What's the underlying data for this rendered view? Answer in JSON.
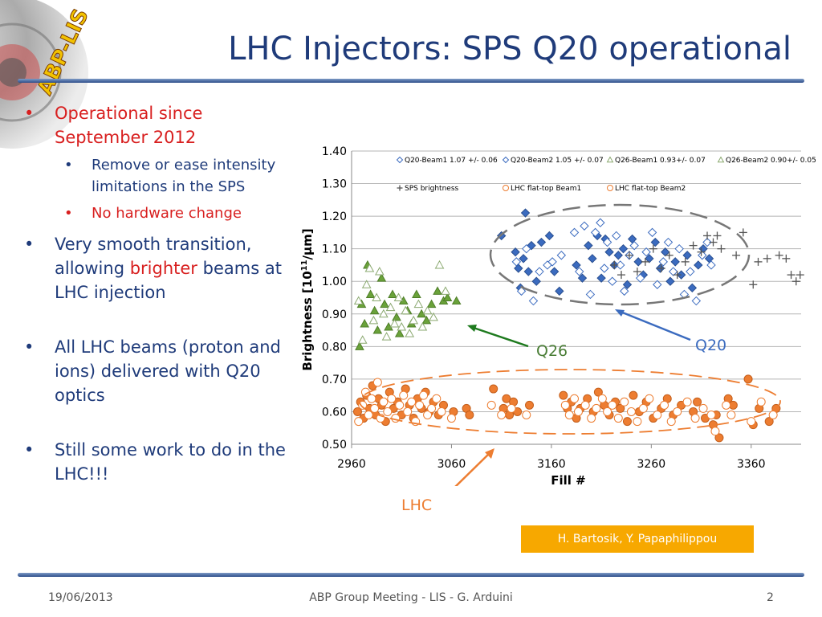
{
  "logo_text": "ABP-LIS",
  "title": "LHC Injectors: SPS Q20 operational",
  "bullets": {
    "b1": "Operational since September 2012",
    "b1_sub1": "Remove or ease intensity limitations in the SPS",
    "b1_sub2": "No hardware change",
    "b2_pre": "Very smooth transition, allowing ",
    "b2_hl": "brighter",
    "b2_post": " beams at LHC injection",
    "b3": "All LHC beams (proton and ions) delivered with Q20 optics",
    "b4": "Still some work to do in the LHC!!!"
  },
  "credit": "H. Bartosik, Y. Papaphilippou",
  "footer": {
    "date": "19/06/2013",
    "meeting": "ABP Group Meeting - LIS - G. Arduini",
    "page": "2"
  },
  "colors": {
    "title": "#1f3b7a",
    "red": "#d81f1f",
    "q20": "#3b6bbf",
    "q26": "#6aa23a",
    "lhc": "#ed7d31",
    "sps": "#555555",
    "credit_bg": "#f7a800"
  },
  "chart_data": {
    "type": "scatter",
    "xlabel": "Fill #",
    "ylabel": "Brightness [10^11/μm]",
    "ylabel_parts": {
      "pre": "Brightness [10",
      "sup": "11",
      "post": "/μm]"
    },
    "x_ticks": [
      "2960",
      "3060",
      "3160",
      "3260",
      "3360"
    ],
    "y_ticks": [
      "0.50",
      "0.60",
      "0.70",
      "0.80",
      "0.90",
      "1.00",
      "1.10",
      "1.20",
      "1.30",
      "1.40"
    ],
    "xlim": [
      2960,
      3410
    ],
    "ylim": [
      0.5,
      1.4
    ],
    "grid": "horizontal",
    "legend": [
      {
        "label": "Q20-Beam1 1.07 +/- 0.06",
        "marker": "diamond-open",
        "color": "#3b6bbf"
      },
      {
        "label": "Q20-Beam2 1.05 +/- 0.07",
        "marker": "diamond-open",
        "color": "#3b6bbf"
      },
      {
        "label": "Q26-Beam1 0.93+/- 0.07",
        "marker": "triangle-open",
        "color": "#6aa23a"
      },
      {
        "label": "Q26-Beam2 0.90+/- 0.05",
        "marker": "triangle-open",
        "color": "#6aa23a"
      },
      {
        "label": "SPS brightness",
        "marker": "plus",
        "color": "#555555"
      },
      {
        "label": "LHC flat-top Beam1",
        "marker": "circle-open",
        "color": "#ed7d31"
      },
      {
        "label": "LHC flat-top Beam2",
        "marker": "circle-open",
        "color": "#ed7d31"
      }
    ],
    "annotations": [
      "Q20",
      "Q26",
      "LHC"
    ],
    "series": [
      {
        "name": "Q26-Beam1 0.93+/- 0.07",
        "marker": "triangle-filled",
        "color": "#6aa23a",
        "points": [
          [
            2968,
            0.8
          ],
          [
            2970,
            0.93
          ],
          [
            2973,
            0.87
          ],
          [
            2976,
            1.05
          ],
          [
            2979,
            0.96
          ],
          [
            2983,
            0.91
          ],
          [
            2986,
            0.85
          ],
          [
            2990,
            1.01
          ],
          [
            2993,
            0.93
          ],
          [
            2997,
            0.86
          ],
          [
            3001,
            0.96
          ],
          [
            3005,
            0.89
          ],
          [
            3008,
            0.84
          ],
          [
            3012,
            0.94
          ],
          [
            3016,
            0.91
          ],
          [
            3020,
            0.87
          ],
          [
            3025,
            0.96
          ],
          [
            3030,
            0.9
          ],
          [
            3035,
            0.88
          ],
          [
            3040,
            0.93
          ],
          [
            3046,
            0.97
          ],
          [
            3052,
            0.94
          ],
          [
            3056,
            0.95
          ],
          [
            3065,
            0.94
          ]
        ]
      },
      {
        "name": "Q26-Beam2 0.90+/- 0.05",
        "marker": "triangle-open",
        "color": "#6aa23a",
        "points": [
          [
            2967,
            0.94
          ],
          [
            2971,
            0.82
          ],
          [
            2975,
            0.99
          ],
          [
            2978,
            1.04
          ],
          [
            2982,
            0.88
          ],
          [
            2985,
            0.95
          ],
          [
            2988,
            1.03
          ],
          [
            2992,
            0.9
          ],
          [
            2995,
            0.83
          ],
          [
            2999,
            0.92
          ],
          [
            3003,
            0.87
          ],
          [
            3007,
            0.95
          ],
          [
            3010,
            0.86
          ],
          [
            3014,
            0.91
          ],
          [
            3018,
            0.84
          ],
          [
            3022,
            0.88
          ],
          [
            3027,
            0.93
          ],
          [
            3031,
            0.86
          ],
          [
            3036,
            0.91
          ],
          [
            3042,
            0.89
          ],
          [
            3048,
            1.05
          ],
          [
            3054,
            0.97
          ]
        ]
      },
      {
        "name": "Q20-Beam1 1.07 +/- 0.06",
        "marker": "diamond-filled",
        "color": "#3b6bbf",
        "points": [
          [
            3110,
            1.14
          ],
          [
            3124,
            1.09
          ],
          [
            3127,
            1.04
          ],
          [
            3129,
            0.98
          ],
          [
            3132,
            1.07
          ],
          [
            3134,
            1.21
          ],
          [
            3137,
            1.03
          ],
          [
            3140,
            1.11
          ],
          [
            3145,
            1.0
          ],
          [
            3150,
            1.12
          ],
          [
            3158,
            1.14
          ],
          [
            3163,
            1.03
          ],
          [
            3168,
            0.97
          ],
          [
            3185,
            1.05
          ],
          [
            3191,
            1.01
          ],
          [
            3197,
            1.11
          ],
          [
            3201,
            1.07
          ],
          [
            3206,
            1.14
          ],
          [
            3210,
            1.01
          ],
          [
            3214,
            1.13
          ],
          [
            3218,
            1.09
          ],
          [
            3223,
            1.05
          ],
          [
            3227,
            1.08
          ],
          [
            3232,
            1.1
          ],
          [
            3236,
            0.99
          ],
          [
            3241,
            1.13
          ],
          [
            3247,
            1.06
          ],
          [
            3252,
            1.02
          ],
          [
            3258,
            1.07
          ],
          [
            3264,
            1.12
          ],
          [
            3269,
            1.04
          ],
          [
            3274,
            1.09
          ],
          [
            3279,
            1.0
          ],
          [
            3284,
            1.06
          ],
          [
            3290,
            1.02
          ],
          [
            3296,
            1.08
          ],
          [
            3301,
            0.98
          ],
          [
            3307,
            1.05
          ],
          [
            3312,
            1.1
          ],
          [
            3318,
            1.07
          ]
        ]
      },
      {
        "name": "Q20-Beam2 1.05 +/- 0.07",
        "marker": "diamond-open",
        "color": "#3b6bbf",
        "points": [
          [
            3125,
            1.06
          ],
          [
            3130,
            0.97
          ],
          [
            3135,
            1.1
          ],
          [
            3142,
            0.94
          ],
          [
            3148,
            1.03
          ],
          [
            3156,
            1.05
          ],
          [
            3161,
            1.06
          ],
          [
            3170,
            1.08
          ],
          [
            3183,
            1.15
          ],
          [
            3188,
            1.03
          ],
          [
            3193,
            1.17
          ],
          [
            3199,
            0.96
          ],
          [
            3204,
            1.15
          ],
          [
            3209,
            1.18
          ],
          [
            3213,
            1.04
          ],
          [
            3216,
            1.12
          ],
          [
            3221,
            1.0
          ],
          [
            3225,
            1.14
          ],
          [
            3229,
            1.05
          ],
          [
            3233,
            0.97
          ],
          [
            3238,
            1.08
          ],
          [
            3243,
            1.11
          ],
          [
            3249,
            1.01
          ],
          [
            3255,
            1.09
          ],
          [
            3261,
            1.15
          ],
          [
            3266,
            0.99
          ],
          [
            3272,
            1.06
          ],
          [
            3277,
            1.12
          ],
          [
            3282,
            1.03
          ],
          [
            3288,
            1.1
          ],
          [
            3293,
            0.96
          ],
          [
            3299,
            1.03
          ],
          [
            3305,
            0.94
          ],
          [
            3311,
            1.08
          ],
          [
            3316,
            1.12
          ],
          [
            3320,
            1.05
          ]
        ]
      },
      {
        "name": "SPS brightness",
        "marker": "plus",
        "color": "#555555",
        "points": [
          [
            3223,
            1.05
          ],
          [
            3230,
            1.02
          ],
          [
            3238,
            1.08
          ],
          [
            3246,
            1.03
          ],
          [
            3254,
            1.06
          ],
          [
            3262,
            1.1
          ],
          [
            3270,
            1.04
          ],
          [
            3278,
            1.08
          ],
          [
            3286,
            1.02
          ],
          [
            3294,
            1.06
          ],
          [
            3302,
            1.11
          ],
          [
            3310,
            1.09
          ],
          [
            3316,
            1.14
          ],
          [
            3322,
            1.12
          ],
          [
            3326,
            1.14
          ],
          [
            3330,
            1.1
          ],
          [
            3345,
            1.08
          ],
          [
            3352,
            1.15
          ],
          [
            3362,
            0.99
          ],
          [
            3367,
            1.06
          ],
          [
            3376,
            1.07
          ],
          [
            3388,
            1.08
          ],
          [
            3395,
            1.07
          ],
          [
            3400,
            1.02
          ],
          [
            3405,
            1.0
          ],
          [
            3409,
            1.02
          ]
        ]
      },
      {
        "name": "LHC flat-top Beam1",
        "marker": "circle-filled",
        "color": "#ed7d31",
        "points": [
          [
            2966,
            0.6
          ],
          [
            2969,
            0.63
          ],
          [
            2972,
            0.58
          ],
          [
            2975,
            0.65
          ],
          [
            2978,
            0.61
          ],
          [
            2981,
            0.68
          ],
          [
            2984,
            0.59
          ],
          [
            2987,
            0.64
          ],
          [
            2990,
            0.62
          ],
          [
            2994,
            0.57
          ],
          [
            2998,
            0.66
          ],
          [
            3002,
            0.61
          ],
          [
            3006,
            0.63
          ],
          [
            3010,
            0.59
          ],
          [
            3014,
            0.67
          ],
          [
            3018,
            0.62
          ],
          [
            3022,
            0.58
          ],
          [
            3026,
            0.64
          ],
          [
            3030,
            0.61
          ],
          [
            3034,
            0.66
          ],
          [
            3038,
            0.6
          ],
          [
            3042,
            0.63
          ],
          [
            3047,
            0.59
          ],
          [
            3052,
            0.62
          ],
          [
            3062,
            0.6
          ],
          [
            3075,
            0.61
          ],
          [
            3078,
            0.59
          ],
          [
            3102,
            0.67
          ],
          [
            3112,
            0.61
          ],
          [
            3115,
            0.64
          ],
          [
            3118,
            0.59
          ],
          [
            3122,
            0.63
          ],
          [
            3126,
            0.6
          ],
          [
            3138,
            0.62
          ],
          [
            3172,
            0.65
          ],
          [
            3176,
            0.61
          ],
          [
            3180,
            0.63
          ],
          [
            3185,
            0.58
          ],
          [
            3189,
            0.61
          ],
          [
            3196,
            0.64
          ],
          [
            3202,
            0.6
          ],
          [
            3207,
            0.66
          ],
          [
            3213,
            0.62
          ],
          [
            3218,
            0.59
          ],
          [
            3224,
            0.63
          ],
          [
            3229,
            0.61
          ],
          [
            3236,
            0.57
          ],
          [
            3242,
            0.65
          ],
          [
            3248,
            0.6
          ],
          [
            3255,
            0.63
          ],
          [
            3262,
            0.58
          ],
          [
            3270,
            0.61
          ],
          [
            3276,
            0.64
          ],
          [
            3282,
            0.59
          ],
          [
            3290,
            0.62
          ],
          [
            3302,
            0.6
          ],
          [
            3306,
            0.63
          ],
          [
            3314,
            0.58
          ],
          [
            3322,
            0.56
          ],
          [
            3325,
            0.59
          ],
          [
            3328,
            0.52
          ],
          [
            3337,
            0.64
          ],
          [
            3342,
            0.62
          ],
          [
            3357,
            0.7
          ],
          [
            3362,
            0.56
          ],
          [
            3368,
            0.61
          ],
          [
            3378,
            0.57
          ],
          [
            3385,
            0.61
          ]
        ]
      },
      {
        "name": "LHC flat-top Beam2",
        "marker": "circle-open",
        "color": "#ed7d31",
        "points": [
          [
            2967,
            0.57
          ],
          [
            2971,
            0.62
          ],
          [
            2974,
            0.66
          ],
          [
            2977,
            0.59
          ],
          [
            2980,
            0.64
          ],
          [
            2983,
            0.61
          ],
          [
            2986,
            0.69
          ],
          [
            2989,
            0.58
          ],
          [
            2992,
            0.63
          ],
          [
            2996,
            0.6
          ],
          [
            3000,
            0.64
          ],
          [
            3004,
            0.58
          ],
          [
            3008,
            0.62
          ],
          [
            3012,
            0.65
          ],
          [
            3016,
            0.6
          ],
          [
            3020,
            0.63
          ],
          [
            3024,
            0.57
          ],
          [
            3028,
            0.62
          ],
          [
            3032,
            0.65
          ],
          [
            3036,
            0.59
          ],
          [
            3040,
            0.61
          ],
          [
            3045,
            0.64
          ],
          [
            3050,
            0.6
          ],
          [
            3060,
            0.58
          ],
          [
            3100,
            0.62
          ],
          [
            3110,
            0.59
          ],
          [
            3120,
            0.61
          ],
          [
            3135,
            0.59
          ],
          [
            3174,
            0.62
          ],
          [
            3178,
            0.59
          ],
          [
            3183,
            0.64
          ],
          [
            3187,
            0.6
          ],
          [
            3194,
            0.62
          ],
          [
            3200,
            0.58
          ],
          [
            3205,
            0.61
          ],
          [
            3211,
            0.64
          ],
          [
            3216,
            0.6
          ],
          [
            3221,
            0.62
          ],
          [
            3227,
            0.58
          ],
          [
            3233,
            0.63
          ],
          [
            3240,
            0.6
          ],
          [
            3246,
            0.57
          ],
          [
            3252,
            0.61
          ],
          [
            3258,
            0.64
          ],
          [
            3266,
            0.59
          ],
          [
            3273,
            0.62
          ],
          [
            3280,
            0.57
          ],
          [
            3286,
            0.6
          ],
          [
            3296,
            0.63
          ],
          [
            3304,
            0.58
          ],
          [
            3312,
            0.61
          ],
          [
            3320,
            0.59
          ],
          [
            3324,
            0.54
          ],
          [
            3335,
            0.62
          ],
          [
            3340,
            0.59
          ],
          [
            3360,
            0.57
          ],
          [
            3370,
            0.63
          ],
          [
            3382,
            0.59
          ]
        ]
      }
    ]
  }
}
